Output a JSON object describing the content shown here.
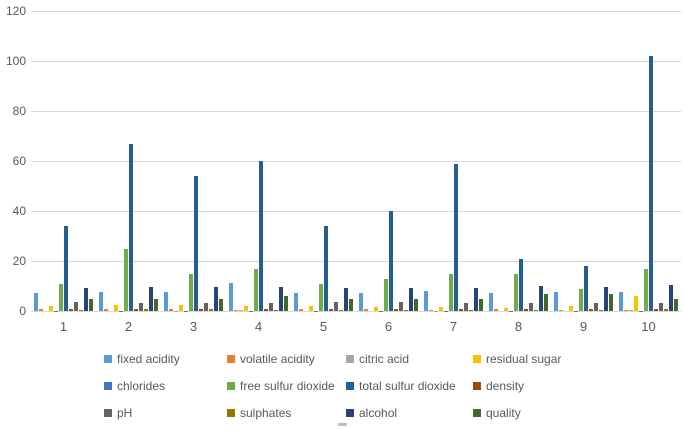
{
  "style": {
    "text_color": "#595959",
    "gridline_color": "#D9D9D9",
    "background": "#FFFFFF"
  },
  "chart_data": {
    "type": "bar",
    "title": "",
    "xlabel": "",
    "ylabel": "",
    "categories": [
      "1",
      "2",
      "3",
      "4",
      "5",
      "6",
      "7",
      "8",
      "9",
      "10"
    ],
    "series": [
      {
        "name": "fixed acidity",
        "color": "#5B9BD5",
        "values": [
          7.4,
          7.8,
          7.8,
          11.2,
          7.4,
          7.4,
          7.9,
          7.3,
          7.8,
          7.5
        ]
      },
      {
        "name": "volatile acidity",
        "color": "#ED7D31",
        "values": [
          0.7,
          0.88,
          0.76,
          0.28,
          0.7,
          0.66,
          0.6,
          0.65,
          0.58,
          0.5
        ]
      },
      {
        "name": "citric acid",
        "color": "#A5A5A5",
        "values": [
          0,
          0,
          0.04,
          0.56,
          0,
          0,
          0.06,
          0,
          0.02,
          0.36
        ]
      },
      {
        "name": "residual sugar",
        "color": "#FFC000",
        "values": [
          1.9,
          2.6,
          2.3,
          1.9,
          1.9,
          1.8,
          1.6,
          1.2,
          2,
          6.1
        ]
      },
      {
        "name": "chlorides",
        "color": "#4472C4",
        "values": [
          0.076,
          0.098,
          0.092,
          0.075,
          0.076,
          0.075,
          0.069,
          0.065,
          0.073,
          0.071
        ]
      },
      {
        "name": "free sulfur dioxide",
        "color": "#70AD47",
        "values": [
          11,
          25,
          15,
          17,
          11,
          13,
          15,
          15,
          9,
          17
        ]
      },
      {
        "name": "total sulfur dioxide",
        "color": "#255E91",
        "values": [
          34,
          67,
          54,
          60,
          34,
          40,
          59,
          21,
          18,
          102
        ]
      },
      {
        "name": "density",
        "color": "#9E480E",
        "values": [
          0.9978,
          0.9968,
          0.997,
          0.998,
          0.9978,
          0.9978,
          0.9964,
          0.9946,
          0.9968,
          0.9978
        ]
      },
      {
        "name": "pH",
        "color": "#636363",
        "values": [
          3.51,
          3.2,
          3.26,
          3.16,
          3.51,
          3.51,
          3.3,
          3.39,
          3.36,
          3.35
        ]
      },
      {
        "name": "sulphates",
        "color": "#997300",
        "values": [
          0.56,
          0.68,
          0.65,
          0.58,
          0.56,
          0.56,
          0.46,
          0.47,
          0.57,
          0.8
        ]
      },
      {
        "name": "alcohol",
        "color": "#264478",
        "values": [
          9.4,
          9.8,
          9.8,
          9.8,
          9.4,
          9.4,
          9.4,
          10,
          9.5,
          10.5
        ]
      },
      {
        "name": "quality",
        "color": "#43682B",
        "values": [
          5,
          5,
          5,
          6,
          5,
          5,
          5,
          7,
          7,
          5
        ]
      }
    ],
    "ylim": [
      0,
      120
    ],
    "y_ticks": [
      0,
      20,
      40,
      60,
      80,
      100,
      120
    ],
    "grid": true,
    "legend_position": "bottom"
  }
}
